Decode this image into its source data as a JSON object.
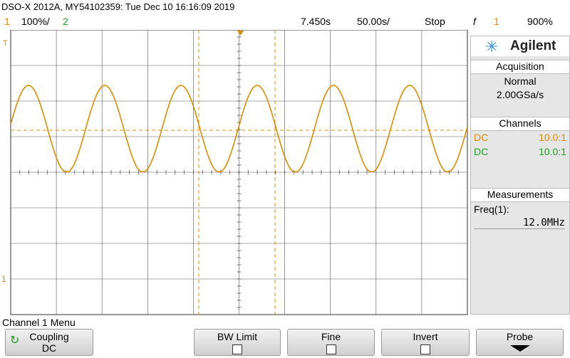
{
  "header": {
    "title": "DSO-X 2012A, MY54102359: Tue Dec 10 16:16:09 2019"
  },
  "topbar": {
    "ch1_num": "1",
    "ch1_scale": "100%/",
    "ch2_num": "2",
    "time_delay": "7.450s",
    "time_scale": "50.00s/",
    "run_state": "Stop",
    "trigger_symbol": "f",
    "trigger_ch": "1",
    "trigger_level": "900%"
  },
  "scope": {
    "trace_color": "#e08c00",
    "grid_color": "#555555",
    "cursor_color": "#e08c00",
    "trigger_marker": "T",
    "ground_marker": "1"
  },
  "panel": {
    "brand": "Agilent",
    "logo_icon": "agilent-spark-icon",
    "acquisition_header": "Acquisition",
    "acq_mode": "Normal",
    "acq_rate": "2.00GSa/s",
    "channels_header": "Channels",
    "ch1_coupling": "DC",
    "ch1_probe": "10.0:1",
    "ch2_coupling": "DC",
    "ch2_probe": "10.0:1",
    "measurements_header": "Measurements",
    "meas_label": "Freq(1):",
    "meas_value": "12.0MHz"
  },
  "menu": {
    "title": "Channel 1 Menu",
    "softkeys": {
      "coupling_label": "Coupling",
      "coupling_value": "DC",
      "bw_label": "BW Limit",
      "fine_label": "Fine",
      "invert_label": "Invert",
      "probe_label": "Probe"
    }
  }
}
